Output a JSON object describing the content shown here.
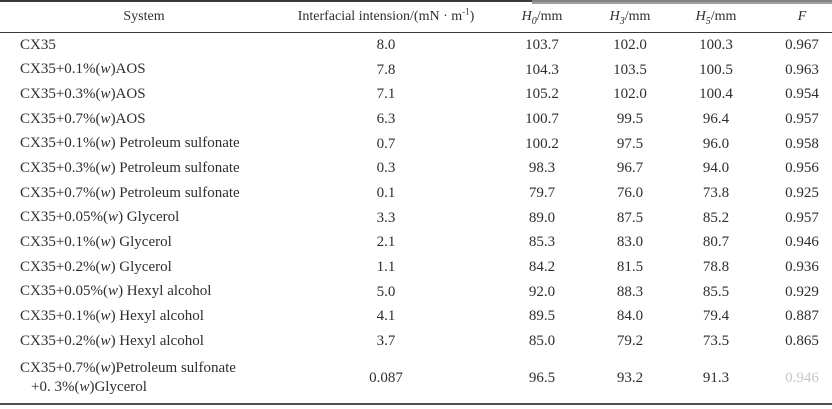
{
  "table": {
    "headers": {
      "system": "System",
      "tension": {
        "prefix": "Interfacial intension/(mN · m",
        "sup": "-1",
        "suffix": ")"
      },
      "h0": {
        "base": "H",
        "sub": "0",
        "unit": "/mm"
      },
      "h3": {
        "base": "H",
        "sub": "3",
        "unit": "/mm"
      },
      "h5": {
        "base": "H",
        "sub": "5",
        "unit": "/mm"
      },
      "f": "F"
    },
    "rows": [
      {
        "system": [
          "CX35"
        ],
        "tension": "8.0",
        "h0": "103.7",
        "h3": "102.0",
        "h5": "100.3",
        "f": "0.967"
      },
      {
        "system": [
          "CX35+0.1%(w)AOS"
        ],
        "tension": "7.8",
        "h0": "104.3",
        "h3": "103.5",
        "h5": "100.5",
        "f": "0.963"
      },
      {
        "system": [
          "CX35+0.3%(w)AOS"
        ],
        "tension": "7.1",
        "h0": "105.2",
        "h3": "102.0",
        "h5": "100.4",
        "f": "0.954"
      },
      {
        "system": [
          "CX35+0.7%(w)AOS"
        ],
        "tension": "6.3",
        "h0": "100.7",
        "h3": "99.5",
        "h5": "96.4",
        "f": "0.957"
      },
      {
        "system": [
          "CX35+0.1%(w) Petroleum sulfonate"
        ],
        "tension": "0.7",
        "h0": "100.2",
        "h3": "97.5",
        "h5": "96.0",
        "f": "0.958"
      },
      {
        "system": [
          "CX35+0.3%(w) Petroleum sulfonate"
        ],
        "tension": "0.3",
        "h0": "98.3",
        "h3": "96.7",
        "h5": "94.0",
        "f": "0.956"
      },
      {
        "system": [
          "CX35+0.7%(w) Petroleum sulfonate"
        ],
        "tension": "0.1",
        "h0": "79.7",
        "h3": "76.0",
        "h5": "73.8",
        "f": "0.925"
      },
      {
        "system": [
          "CX35+0.05%(w) Glycerol"
        ],
        "tension": "3.3",
        "h0": "89.0",
        "h3": "87.5",
        "h5": "85.2",
        "f": "0.957"
      },
      {
        "system": [
          "CX35+0.1%(w) Glycerol"
        ],
        "tension": "2.1",
        "h0": "85.3",
        "h3": "83.0",
        "h5": "80.7",
        "f": "0.946"
      },
      {
        "system": [
          "CX35+0.2%(w) Glycerol"
        ],
        "tension": "1.1",
        "h0": "84.2",
        "h3": "81.5",
        "h5": "78.8",
        "f": "0.936"
      },
      {
        "system": [
          "CX35+0.05%(w) Hexyl alcohol"
        ],
        "tension": "5.0",
        "h0": "92.0",
        "h3": "88.3",
        "h5": "85.5",
        "f": "0.929"
      },
      {
        "system": [
          "CX35+0.1%(w) Hexyl alcohol"
        ],
        "tension": "4.1",
        "h0": "89.5",
        "h3": "84.0",
        "h5": "79.4",
        "f": "0.887"
      },
      {
        "system": [
          "CX35+0.2%(w) Hexyl alcohol"
        ],
        "tension": "3.7",
        "h0": "85.0",
        "h3": "79.2",
        "h5": "73.5",
        "f": "0.865"
      },
      {
        "system": [
          "CX35+0.7%(w)Petroleum sulfonate",
          "+0. 3%(w)Glycerol"
        ],
        "tension": "0.087",
        "h0": "96.5",
        "h3": "93.2",
        "h5": "91.3",
        "f": "0.946",
        "f_faded": true
      }
    ]
  }
}
